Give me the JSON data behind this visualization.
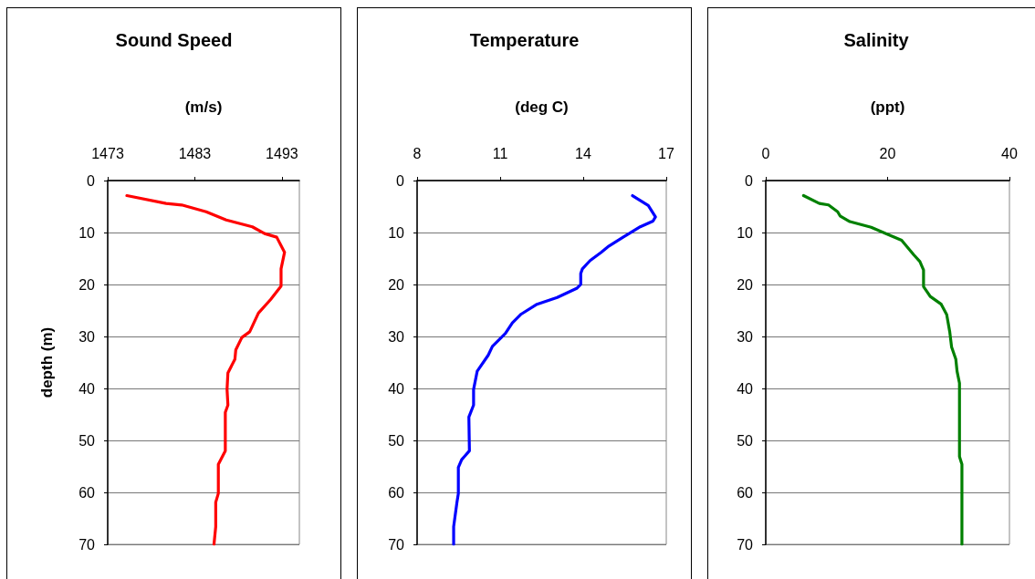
{
  "chart_data": [
    {
      "type": "line",
      "title": "Sound Speed",
      "xlabel": "(m/s)",
      "ylabel": "depth (m)",
      "xlim": [
        1473,
        1495
      ],
      "xticks": [
        1473,
        1483,
        1493
      ],
      "ylim": [
        70,
        0
      ],
      "yticks": [
        0,
        10,
        20,
        30,
        40,
        50,
        60,
        70
      ],
      "grid": "y",
      "series": [
        {
          "color": "#ff0000",
          "x": [
            1475.2,
            1479.7,
            1481.5,
            1484.3,
            1486.6,
            1489.6,
            1491.0,
            1492.4,
            1493.3,
            1492.9,
            1492.9,
            1491.7,
            1490.3,
            1489.3,
            1488.4,
            1487.7,
            1487.6,
            1486.8,
            1486.7,
            1486.8,
            1486.5,
            1486.5,
            1485.7,
            1485.7,
            1485.4,
            1485.4,
            1485.2
          ],
          "values": [
            2.9,
            4.4,
            4.7,
            6.0,
            7.6,
            8.9,
            10.2,
            10.9,
            13.8,
            17.0,
            20.3,
            22.9,
            25.5,
            29.1,
            30.2,
            32.6,
            34.4,
            37.0,
            40.2,
            43.2,
            44.6,
            52.0,
            54.6,
            60.2,
            61.9,
            66.6,
            70.0
          ]
        }
      ]
    },
    {
      "type": "line",
      "title": "Temperature",
      "xlabel": "(deg C)",
      "xlim": [
        8,
        17
      ],
      "xticks": [
        8,
        11,
        14,
        17
      ],
      "ylim": [
        70,
        0
      ],
      "yticks": [
        0,
        10,
        20,
        30,
        40,
        50,
        60,
        70
      ],
      "grid": "y",
      "series": [
        {
          "color": "#0000ff",
          "x": [
            15.78,
            16.35,
            16.61,
            16.52,
            16.06,
            15.44,
            14.93,
            14.65,
            14.25,
            13.97,
            13.91,
            13.91,
            13.78,
            13.06,
            12.33,
            11.76,
            11.44,
            11.19,
            10.72,
            10.57,
            10.17,
            10.04,
            10.04,
            9.87,
            9.89,
            9.61,
            9.49,
            9.49,
            9.44,
            9.32,
            9.32
          ],
          "values": [
            2.9,
            4.8,
            7.0,
            7.8,
            8.9,
            10.9,
            12.6,
            13.8,
            15.4,
            17.0,
            17.9,
            20.0,
            20.7,
            22.5,
            23.8,
            25.7,
            27.4,
            29.4,
            31.9,
            33.6,
            36.7,
            40.2,
            43.2,
            45.5,
            52.0,
            53.7,
            55.2,
            60.2,
            61.9,
            66.6,
            70.0
          ]
        }
      ]
    },
    {
      "type": "line",
      "title": "Salinity",
      "xlabel": "(ppt)",
      "xlim": [
        0,
        40
      ],
      "xticks": [
        0,
        20,
        40
      ],
      "ylim": [
        70,
        0
      ],
      "yticks": [
        0,
        10,
        20,
        30,
        40,
        50,
        60,
        70
      ],
      "grid": "y",
      "series": [
        {
          "color": "#008000",
          "x": [
            6.2,
            8.8,
            10.3,
            11.8,
            12.2,
            13.8,
            17.3,
            19.3,
            22.3,
            24.3,
            25.3,
            25.9,
            25.9,
            27.0,
            28.8,
            29.7,
            30.2,
            30.5,
            31.2,
            31.4,
            31.8,
            31.8,
            32.2,
            32.2
          ],
          "values": [
            2.9,
            4.4,
            4.7,
            6.0,
            6.8,
            7.9,
            9.0,
            10.0,
            11.5,
            14.3,
            15.6,
            17.2,
            20.4,
            22.3,
            23.8,
            25.8,
            29.1,
            32.0,
            34.4,
            36.7,
            39.0,
            53.1,
            54.6,
            70.0
          ]
        }
      ]
    }
  ]
}
